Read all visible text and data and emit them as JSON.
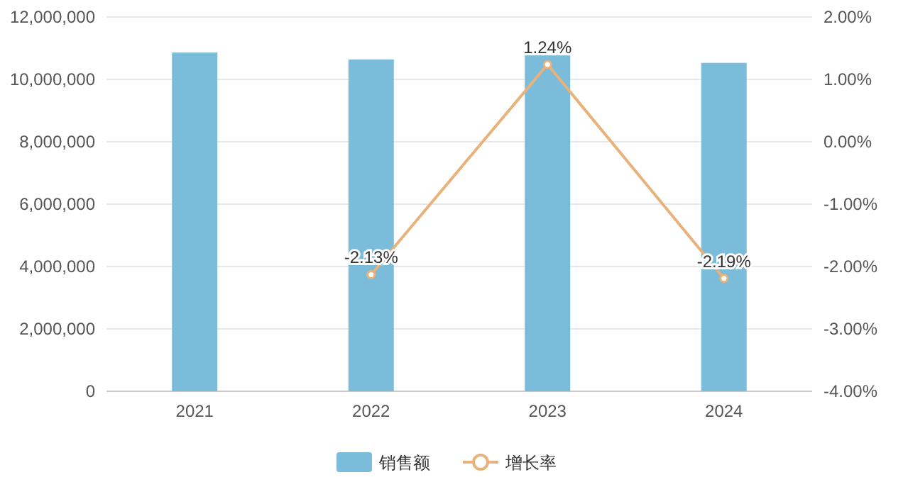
{
  "chart_data": {
    "type": "bar",
    "categories": [
      "2021",
      "2022",
      "2023",
      "2024"
    ],
    "series": [
      {
        "name": "销售额",
        "color": "#7bbcda",
        "values": [
          10860000,
          10640000,
          10770000,
          10530000
        ]
      },
      {
        "name": "增长率",
        "type": "line",
        "axis": "y2",
        "color": "#e8b27c",
        "values": [
          null,
          -2.13,
          1.24,
          -2.19
        ],
        "value_labels": [
          null,
          "-2.13%",
          "1.24%",
          "-2.19%"
        ]
      }
    ],
    "ylim": [
      0,
      12000000
    ],
    "yticks": [
      0,
      {
        "value": 2000000,
        "label": "2,000,000"
      },
      {
        "value": 4000000,
        "label": "4,000,000"
      },
      {
        "value": 6000000,
        "label": "6,000,000"
      },
      {
        "value": 8000000,
        "label": "8,000,000"
      },
      {
        "value": 10000000,
        "label": "10,000,000"
      },
      {
        "value": 12000000,
        "label": "12,000,000"
      }
    ],
    "y2lim": [
      -4,
      2
    ],
    "y2ticks": [
      {
        "value": -4,
        "label": "-4.00%"
      },
      {
        "value": -3,
        "label": "-3.00%"
      },
      {
        "value": -2,
        "label": "-2.00%"
      },
      {
        "value": -1,
        "label": "-1.00%"
      },
      {
        "value": 0,
        "label": "0.00%"
      },
      {
        "value": 1,
        "label": "1.00%"
      },
      {
        "value": 2,
        "label": "2.00%"
      }
    ],
    "grid": "y",
    "legend": "bottom",
    "marker": "circle"
  }
}
